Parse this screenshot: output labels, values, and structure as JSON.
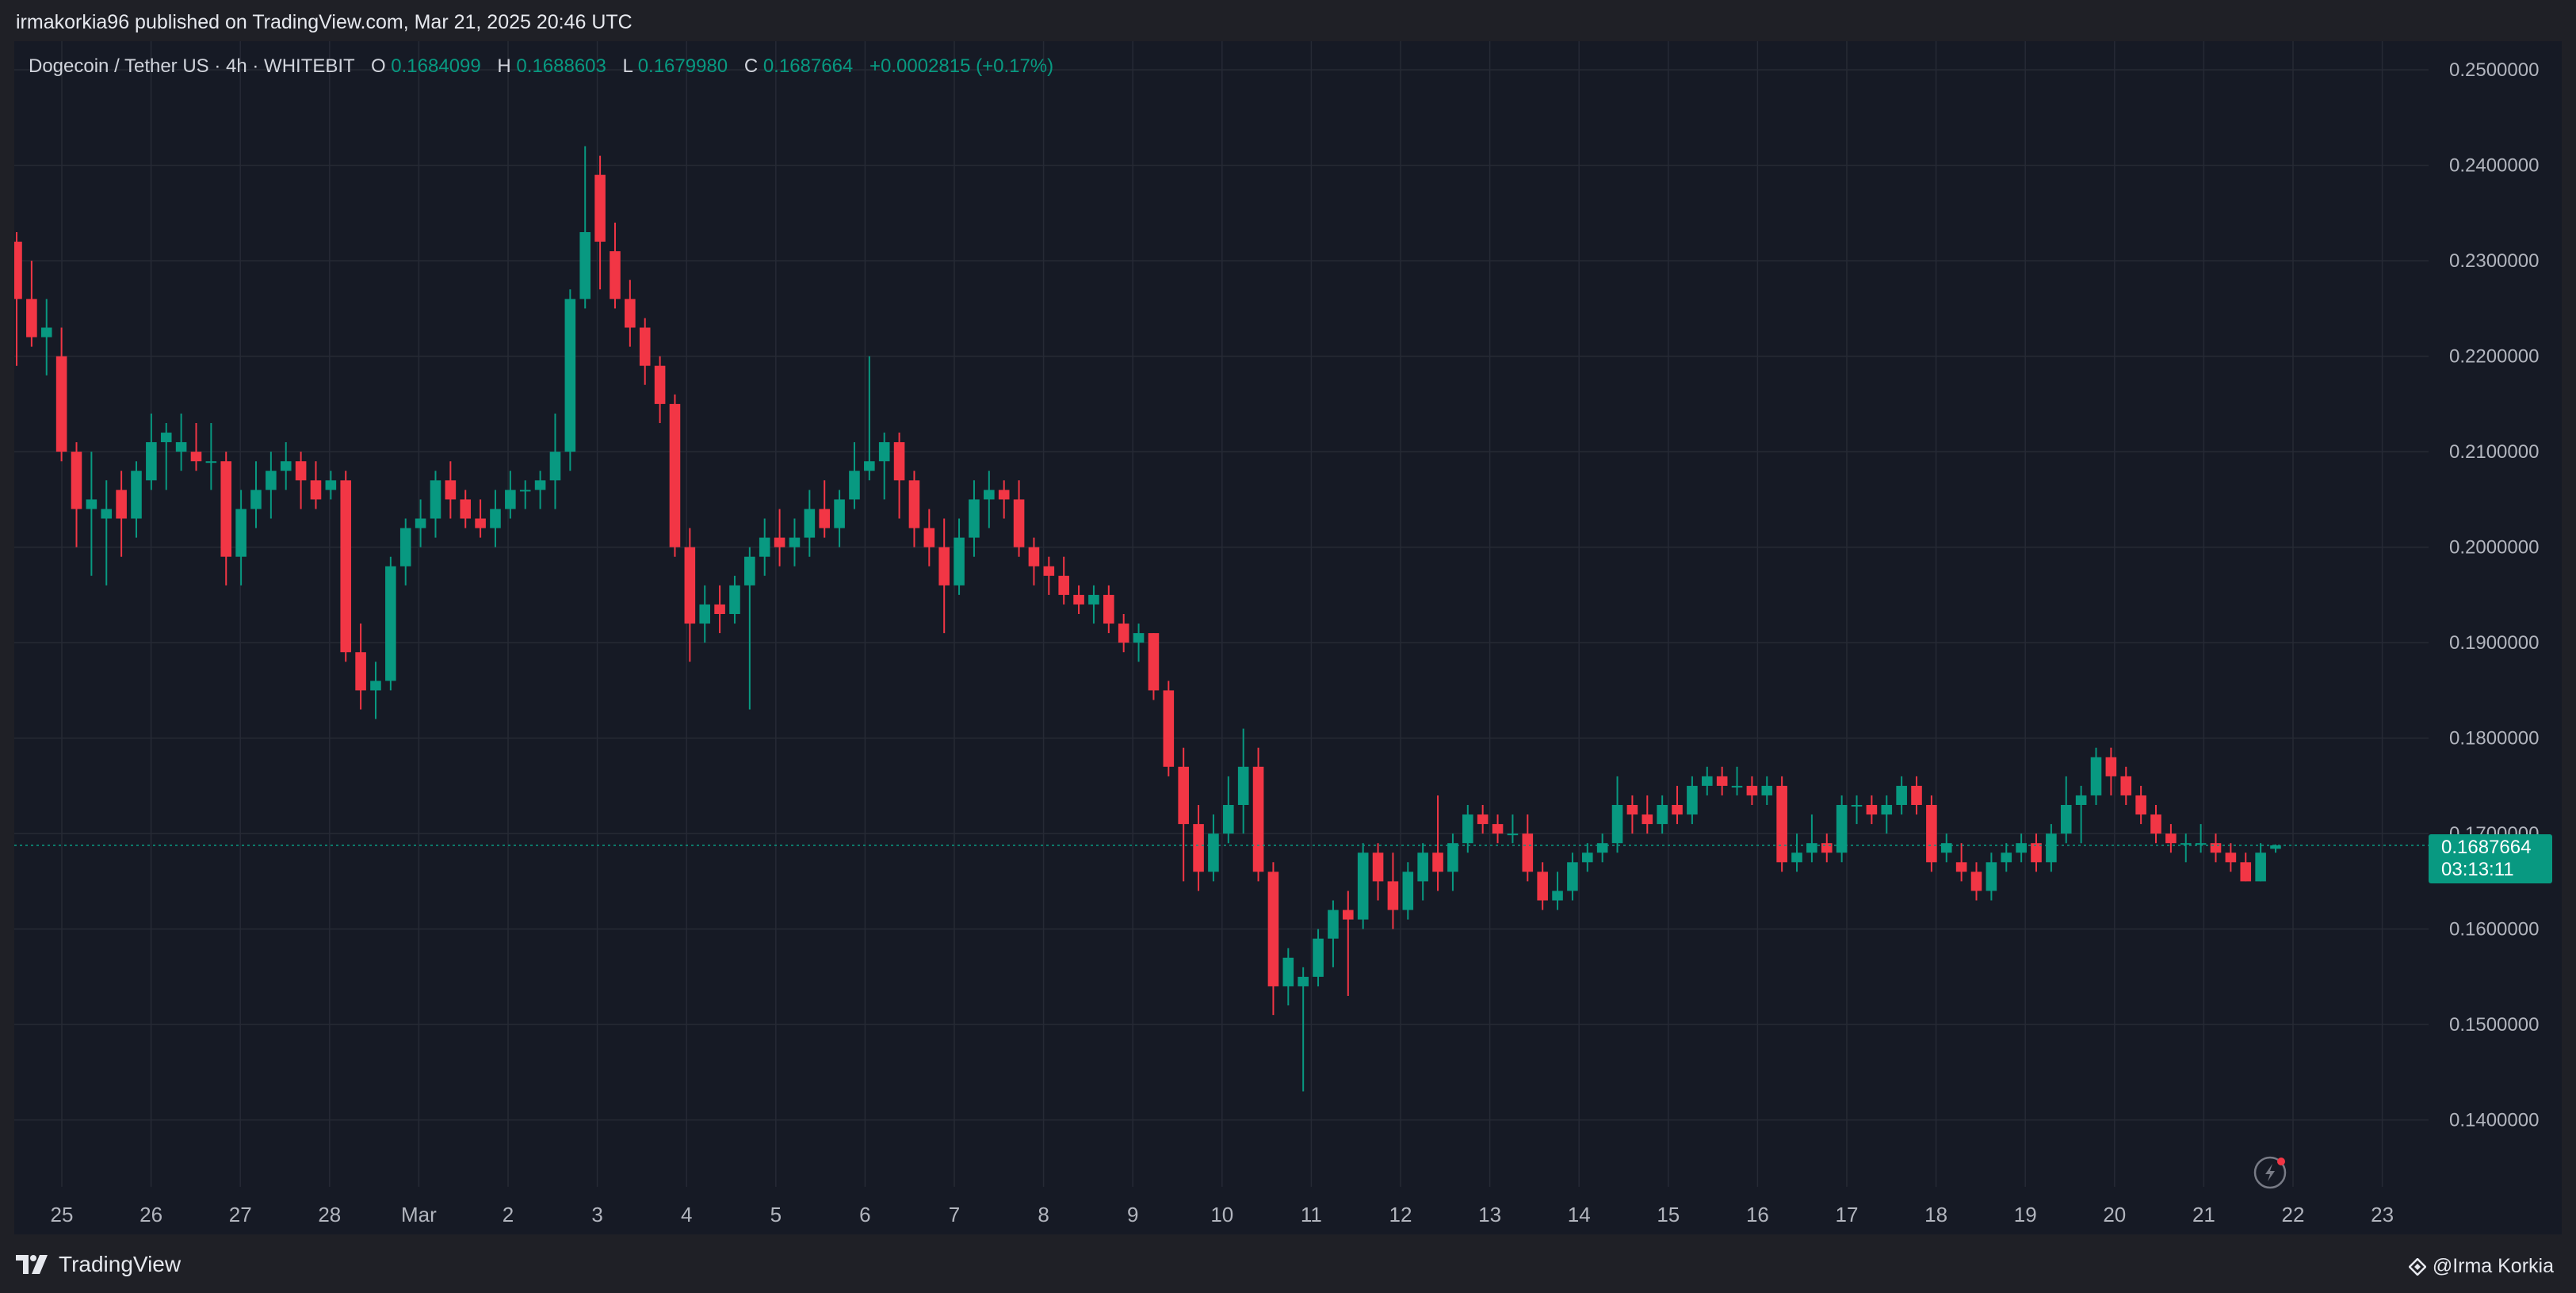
{
  "header": {
    "published_line": "irmakorkia96 published on TradingView.com, Mar 21, 2025 20:46 UTC"
  },
  "legend": {
    "symbol": "Dogecoin / Tether US · 4h · WHITEBIT",
    "o_label": "O",
    "o_value": "0.1684099",
    "h_label": "H",
    "h_value": "0.1688603",
    "l_label": "L",
    "l_value": "0.1679980",
    "c_label": "C",
    "c_value": "0.1687664",
    "change": "+0.0002815 (+0.17%)"
  },
  "price_tag": {
    "price": "0.1687664",
    "countdown": "03:13:11"
  },
  "footer": {
    "brand": "TradingView",
    "author": "@Irma Korkia"
  },
  "colors": {
    "up": "#089981",
    "down": "#f23645",
    "background": "#161a25",
    "grid": "#262a35",
    "axis_text": "#b2b5be",
    "tag": "#089981"
  },
  "chart_data": {
    "type": "candlestick",
    "timeframe": "4h",
    "ylim": [
      0.133,
      0.253
    ],
    "grid": true,
    "y_ticks": [
      "0.1400000",
      "0.1500000",
      "0.1600000",
      "0.1700000",
      "0.1800000",
      "0.1900000",
      "0.2000000",
      "0.2100000",
      "0.2200000",
      "0.2300000",
      "0.2400000",
      "0.2500000"
    ],
    "x_ticks": [
      "25",
      "26",
      "27",
      "28",
      "Mar",
      "2",
      "3",
      "4",
      "5",
      "6",
      "7",
      "8",
      "9",
      "10",
      "11",
      "12",
      "13",
      "14",
      "15",
      "16",
      "17",
      "18",
      "19",
      "20",
      "21",
      "22",
      "23"
    ],
    "last_close": 0.1687664,
    "candles_ohlc": [
      [
        0.232,
        0.233,
        0.219,
        0.226
      ],
      [
        0.226,
        0.23,
        0.221,
        0.222
      ],
      [
        0.222,
        0.226,
        0.218,
        0.223
      ],
      [
        0.22,
        0.223,
        0.209,
        0.21
      ],
      [
        0.21,
        0.211,
        0.2,
        0.204
      ],
      [
        0.204,
        0.21,
        0.197,
        0.205
      ],
      [
        0.203,
        0.207,
        0.196,
        0.204
      ],
      [
        0.206,
        0.208,
        0.199,
        0.203
      ],
      [
        0.203,
        0.209,
        0.201,
        0.208
      ],
      [
        0.207,
        0.214,
        0.206,
        0.211
      ],
      [
        0.211,
        0.213,
        0.206,
        0.212
      ],
      [
        0.21,
        0.214,
        0.208,
        0.211
      ],
      [
        0.21,
        0.213,
        0.208,
        0.209
      ],
      [
        0.209,
        0.213,
        0.206,
        0.209
      ],
      [
        0.209,
        0.21,
        0.196,
        0.199
      ],
      [
        0.199,
        0.206,
        0.196,
        0.204
      ],
      [
        0.204,
        0.209,
        0.202,
        0.206
      ],
      [
        0.206,
        0.21,
        0.203,
        0.208
      ],
      [
        0.208,
        0.211,
        0.206,
        0.209
      ],
      [
        0.209,
        0.21,
        0.204,
        0.207
      ],
      [
        0.207,
        0.209,
        0.204,
        0.205
      ],
      [
        0.206,
        0.208,
        0.205,
        0.207
      ],
      [
        0.207,
        0.208,
        0.188,
        0.189
      ],
      [
        0.189,
        0.192,
        0.183,
        0.185
      ],
      [
        0.185,
        0.188,
        0.182,
        0.186
      ],
      [
        0.186,
        0.199,
        0.185,
        0.198
      ],
      [
        0.198,
        0.203,
        0.196,
        0.202
      ],
      [
        0.202,
        0.205,
        0.2,
        0.203
      ],
      [
        0.203,
        0.208,
        0.201,
        0.207
      ],
      [
        0.207,
        0.209,
        0.203,
        0.205
      ],
      [
        0.205,
        0.206,
        0.202,
        0.203
      ],
      [
        0.203,
        0.205,
        0.201,
        0.202
      ],
      [
        0.202,
        0.206,
        0.2,
        0.204
      ],
      [
        0.204,
        0.208,
        0.203,
        0.206
      ],
      [
        0.206,
        0.207,
        0.204,
        0.206
      ],
      [
        0.206,
        0.208,
        0.204,
        0.207
      ],
      [
        0.207,
        0.214,
        0.204,
        0.21
      ],
      [
        0.21,
        0.227,
        0.208,
        0.226
      ],
      [
        0.226,
        0.242,
        0.225,
        0.233
      ],
      [
        0.239,
        0.241,
        0.227,
        0.232
      ],
      [
        0.231,
        0.234,
        0.225,
        0.226
      ],
      [
        0.226,
        0.228,
        0.221,
        0.223
      ],
      [
        0.223,
        0.224,
        0.217,
        0.219
      ],
      [
        0.219,
        0.22,
        0.213,
        0.215
      ],
      [
        0.215,
        0.216,
        0.199,
        0.2
      ],
      [
        0.2,
        0.202,
        0.188,
        0.192
      ],
      [
        0.192,
        0.196,
        0.19,
        0.194
      ],
      [
        0.194,
        0.196,
        0.191,
        0.193
      ],
      [
        0.193,
        0.197,
        0.192,
        0.196
      ],
      [
        0.196,
        0.2,
        0.183,
        0.199
      ],
      [
        0.199,
        0.203,
        0.197,
        0.201
      ],
      [
        0.201,
        0.204,
        0.198,
        0.2
      ],
      [
        0.2,
        0.203,
        0.198,
        0.201
      ],
      [
        0.201,
        0.206,
        0.199,
        0.204
      ],
      [
        0.204,
        0.207,
        0.201,
        0.202
      ],
      [
        0.202,
        0.206,
        0.2,
        0.205
      ],
      [
        0.205,
        0.211,
        0.204,
        0.208
      ],
      [
        0.208,
        0.22,
        0.207,
        0.209
      ],
      [
        0.209,
        0.212,
        0.205,
        0.211
      ],
      [
        0.211,
        0.212,
        0.203,
        0.207
      ],
      [
        0.207,
        0.208,
        0.2,
        0.202
      ],
      [
        0.202,
        0.204,
        0.198,
        0.2
      ],
      [
        0.2,
        0.203,
        0.191,
        0.196
      ],
      [
        0.196,
        0.203,
        0.195,
        0.201
      ],
      [
        0.201,
        0.207,
        0.199,
        0.205
      ],
      [
        0.205,
        0.208,
        0.202,
        0.206
      ],
      [
        0.206,
        0.207,
        0.203,
        0.205
      ],
      [
        0.205,
        0.207,
        0.199,
        0.2
      ],
      [
        0.2,
        0.201,
        0.196,
        0.198
      ],
      [
        0.198,
        0.199,
        0.195,
        0.197
      ],
      [
        0.197,
        0.199,
        0.194,
        0.195
      ],
      [
        0.195,
        0.196,
        0.193,
        0.194
      ],
      [
        0.194,
        0.196,
        0.192,
        0.195
      ],
      [
        0.195,
        0.196,
        0.191,
        0.192
      ],
      [
        0.192,
        0.193,
        0.189,
        0.19
      ],
      [
        0.19,
        0.192,
        0.188,
        0.191
      ],
      [
        0.191,
        0.191,
        0.184,
        0.185
      ],
      [
        0.185,
        0.186,
        0.176,
        0.177
      ],
      [
        0.177,
        0.179,
        0.165,
        0.171
      ],
      [
        0.171,
        0.173,
        0.164,
        0.166
      ],
      [
        0.166,
        0.172,
        0.165,
        0.17
      ],
      [
        0.17,
        0.176,
        0.169,
        0.173
      ],
      [
        0.173,
        0.181,
        0.17,
        0.177
      ],
      [
        0.177,
        0.179,
        0.165,
        0.166
      ],
      [
        0.166,
        0.167,
        0.151,
        0.154
      ],
      [
        0.154,
        0.158,
        0.152,
        0.157
      ],
      [
        0.154,
        0.156,
        0.143,
        0.155
      ],
      [
        0.155,
        0.16,
        0.154,
        0.159
      ],
      [
        0.159,
        0.163,
        0.156,
        0.162
      ],
      [
        0.162,
        0.164,
        0.153,
        0.161
      ],
      [
        0.161,
        0.169,
        0.16,
        0.168
      ],
      [
        0.168,
        0.169,
        0.163,
        0.165
      ],
      [
        0.165,
        0.168,
        0.16,
        0.162
      ],
      [
        0.162,
        0.167,
        0.161,
        0.166
      ],
      [
        0.165,
        0.169,
        0.163,
        0.168
      ],
      [
        0.168,
        0.174,
        0.164,
        0.166
      ],
      [
        0.166,
        0.17,
        0.164,
        0.169
      ],
      [
        0.169,
        0.173,
        0.168,
        0.172
      ],
      [
        0.172,
        0.173,
        0.17,
        0.171
      ],
      [
        0.171,
        0.172,
        0.169,
        0.17
      ],
      [
        0.17,
        0.172,
        0.169,
        0.17
      ],
      [
        0.17,
        0.172,
        0.165,
        0.166
      ],
      [
        0.166,
        0.167,
        0.162,
        0.163
      ],
      [
        0.163,
        0.166,
        0.162,
        0.164
      ],
      [
        0.164,
        0.168,
        0.163,
        0.167
      ],
      [
        0.167,
        0.169,
        0.166,
        0.168
      ],
      [
        0.168,
        0.17,
        0.167,
        0.169
      ],
      [
        0.169,
        0.176,
        0.168,
        0.173
      ],
      [
        0.173,
        0.174,
        0.17,
        0.172
      ],
      [
        0.172,
        0.174,
        0.17,
        0.171
      ],
      [
        0.171,
        0.174,
        0.17,
        0.173
      ],
      [
        0.173,
        0.175,
        0.171,
        0.172
      ],
      [
        0.172,
        0.176,
        0.171,
        0.175
      ],
      [
        0.175,
        0.177,
        0.174,
        0.176
      ],
      [
        0.176,
        0.177,
        0.174,
        0.175
      ],
      [
        0.175,
        0.177,
        0.174,
        0.175
      ],
      [
        0.175,
        0.176,
        0.173,
        0.174
      ],
      [
        0.174,
        0.176,
        0.173,
        0.175
      ],
      [
        0.175,
        0.176,
        0.166,
        0.167
      ],
      [
        0.167,
        0.17,
        0.166,
        0.168
      ],
      [
        0.168,
        0.172,
        0.167,
        0.169
      ],
      [
        0.169,
        0.17,
        0.167,
        0.168
      ],
      [
        0.168,
        0.174,
        0.167,
        0.173
      ],
      [
        0.173,
        0.174,
        0.171,
        0.173
      ],
      [
        0.173,
        0.174,
        0.171,
        0.172
      ],
      [
        0.172,
        0.174,
        0.17,
        0.173
      ],
      [
        0.173,
        0.176,
        0.172,
        0.175
      ],
      [
        0.175,
        0.176,
        0.172,
        0.173
      ],
      [
        0.173,
        0.174,
        0.166,
        0.167
      ],
      [
        0.168,
        0.17,
        0.167,
        0.169
      ],
      [
        0.167,
        0.169,
        0.165,
        0.166
      ],
      [
        0.166,
        0.167,
        0.163,
        0.164
      ],
      [
        0.164,
        0.168,
        0.163,
        0.167
      ],
      [
        0.167,
        0.169,
        0.166,
        0.168
      ],
      [
        0.168,
        0.17,
        0.167,
        0.169
      ],
      [
        0.169,
        0.17,
        0.166,
        0.167
      ],
      [
        0.167,
        0.171,
        0.166,
        0.17
      ],
      [
        0.17,
        0.176,
        0.169,
        0.173
      ],
      [
        0.173,
        0.175,
        0.169,
        0.174
      ],
      [
        0.174,
        0.179,
        0.173,
        0.178
      ],
      [
        0.178,
        0.179,
        0.174,
        0.176
      ],
      [
        0.176,
        0.177,
        0.173,
        0.174
      ],
      [
        0.174,
        0.175,
        0.171,
        0.172
      ],
      [
        0.172,
        0.173,
        0.169,
        0.17
      ],
      [
        0.17,
        0.171,
        0.168,
        0.169
      ],
      [
        0.169,
        0.17,
        0.167,
        0.169
      ],
      [
        0.169,
        0.171,
        0.168,
        0.169
      ],
      [
        0.169,
        0.17,
        0.167,
        0.168
      ],
      [
        0.168,
        0.169,
        0.166,
        0.167
      ],
      [
        0.167,
        0.168,
        0.165,
        0.165
      ],
      [
        0.165,
        0.169,
        0.165,
        0.168
      ],
      [
        0.1684099,
        0.1688603,
        0.167998,
        0.1687664
      ]
    ]
  }
}
